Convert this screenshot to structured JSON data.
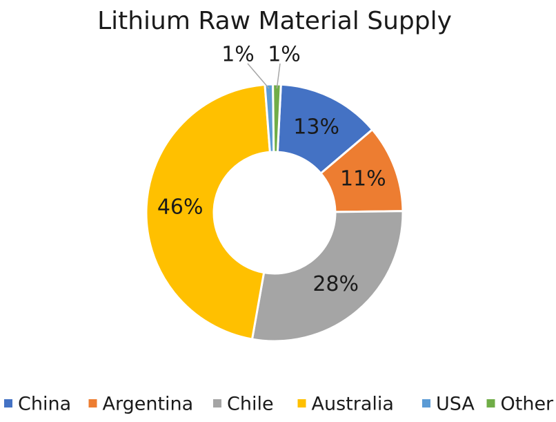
{
  "chart_data": {
    "type": "pie",
    "variant": "donut",
    "title": "Lithium Raw Material Supply",
    "slices": [
      {
        "name": "China",
        "value": 13,
        "label": "13%",
        "color": "#4472C4"
      },
      {
        "name": "Argentina",
        "value": 11,
        "label": "11%",
        "color": "#ED7D31"
      },
      {
        "name": "Chile",
        "value": 28,
        "label": "28%",
        "color": "#A5A5A5"
      },
      {
        "name": "Australia",
        "value": 46,
        "label": "46%",
        "color": "#FFC000"
      },
      {
        "name": "USA",
        "value": 1,
        "label": "1%",
        "color": "#5B9BD5"
      },
      {
        "name": "Other",
        "value": 1,
        "label": "1%",
        "color": "#70AD47"
      }
    ],
    "legend_position": "bottom"
  }
}
